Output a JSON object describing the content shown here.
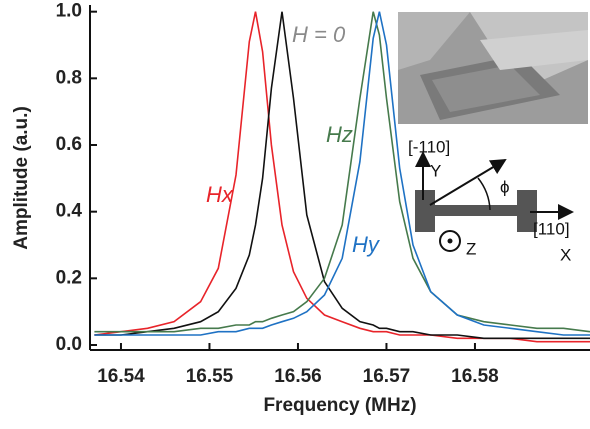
{
  "chart_data": {
    "type": "line",
    "x_label": "Frequency (MHz)",
    "y_label": "Amplitude (a.u.)",
    "x": [
      16.537,
      16.54,
      16.543,
      16.546,
      16.549,
      16.551,
      16.553,
      16.5545,
      16.5552,
      16.556,
      16.557,
      16.5582,
      16.5595,
      16.561,
      16.563,
      16.565,
      16.567,
      16.5685,
      16.5692,
      16.57,
      16.5715,
      16.573,
      16.575,
      16.578,
      16.581,
      16.584,
      16.587,
      16.59,
      16.593
    ],
    "series": [
      {
        "name": "Hx",
        "color": "#e8242a",
        "values": [
          0.03,
          0.04,
          0.05,
          0.07,
          0.13,
          0.23,
          0.51,
          0.91,
          1.0,
          0.88,
          0.6,
          0.36,
          0.22,
          0.14,
          0.09,
          0.07,
          0.05,
          0.04,
          0.04,
          0.04,
          0.03,
          0.03,
          0.03,
          0.02,
          0.02,
          0.02,
          0.01,
          0.01,
          0.01
        ]
      },
      {
        "name": "H = 0",
        "color": "#111111",
        "values": [
          0.03,
          0.03,
          0.04,
          0.05,
          0.07,
          0.1,
          0.17,
          0.27,
          0.36,
          0.5,
          0.77,
          1.0,
          0.74,
          0.39,
          0.19,
          0.11,
          0.07,
          0.06,
          0.05,
          0.05,
          0.04,
          0.04,
          0.03,
          0.03,
          0.02,
          0.02,
          0.02,
          0.02,
          0.02
        ]
      },
      {
        "name": "Hz",
        "color": "#467a4c",
        "values": [
          0.04,
          0.04,
          0.04,
          0.04,
          0.05,
          0.05,
          0.06,
          0.06,
          0.07,
          0.07,
          0.08,
          0.09,
          0.1,
          0.13,
          0.2,
          0.36,
          0.74,
          1.0,
          0.93,
          0.74,
          0.43,
          0.26,
          0.16,
          0.09,
          0.07,
          0.06,
          0.05,
          0.05,
          0.04
        ]
      },
      {
        "name": "Hy",
        "color": "#1f72c4",
        "values": [
          0.03,
          0.03,
          0.03,
          0.03,
          0.03,
          0.04,
          0.04,
          0.05,
          0.05,
          0.05,
          0.06,
          0.07,
          0.08,
          0.1,
          0.15,
          0.26,
          0.55,
          0.92,
          1.0,
          0.9,
          0.53,
          0.3,
          0.16,
          0.09,
          0.06,
          0.05,
          0.04,
          0.03,
          0.03
        ]
      }
    ],
    "xlim": [
      16.5365,
      16.593
    ],
    "xticks": [
      16.54,
      16.55,
      16.56,
      16.57,
      16.58
    ],
    "ylim": [
      -0.015,
      1.02
    ],
    "yticks": [
      {
        "value": 0,
        "label": "0.0"
      },
      0.2,
      0.4,
      0.6,
      0.8,
      {
        "value": 1,
        "label": "1.0"
      }
    ]
  },
  "diagram": {
    "axis_y_direction": "[-110]",
    "axis_y": "Y",
    "angle": "ϕ",
    "axis_z": "Z",
    "axis_x_direction": "[110]",
    "axis_x": "X"
  }
}
